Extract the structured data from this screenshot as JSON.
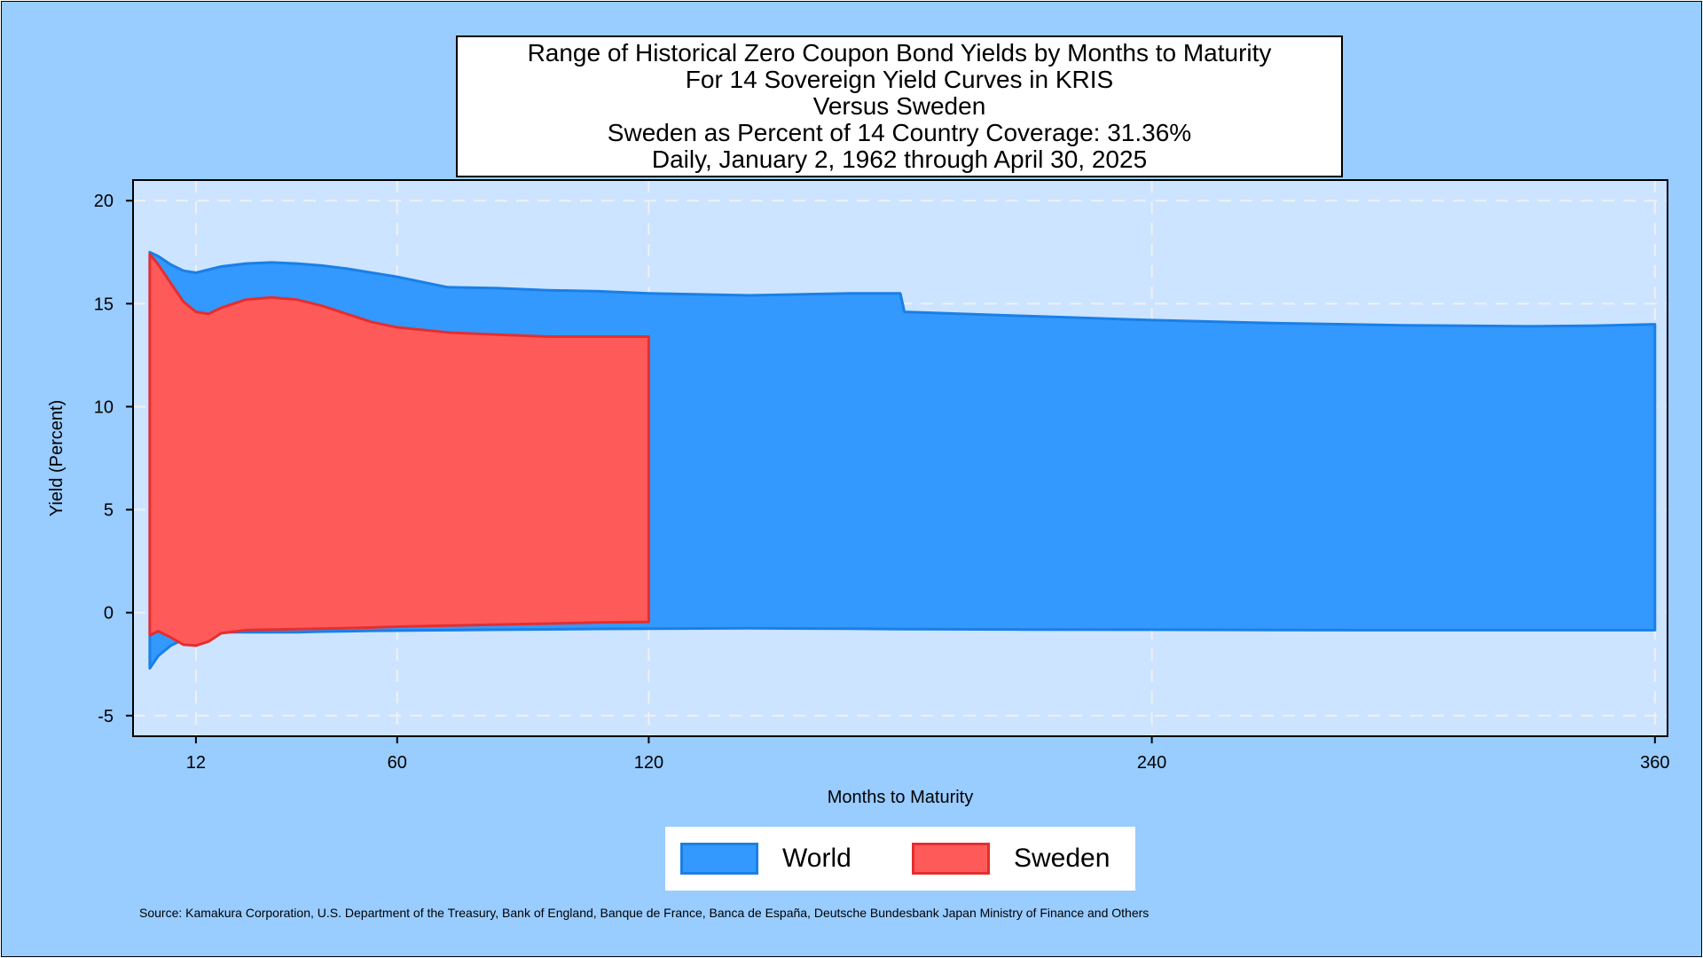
{
  "chart_data": {
    "type": "area",
    "title_lines": [
      "Range of Historical Zero Coupon Bond Yields by Months to Maturity",
      "For 14 Sovereign Yield Curves in KRIS",
      "Versus Sweden",
      "Sweden as Percent of 14 Country Coverage: 31.36%",
      "Daily, January 2, 1962 through April 30, 2025"
    ],
    "xlabel": "Months to Maturity",
    "ylabel": "Yield (Percent)",
    "xlim": [
      -3,
      363
    ],
    "ylim": [
      -6,
      21
    ],
    "x_ticks": [
      12,
      60,
      120,
      240,
      360
    ],
    "y_ticks": [
      -5,
      0,
      5,
      10,
      15,
      20
    ],
    "grid": true,
    "legend_position": "bottom",
    "series": [
      {
        "name": "World",
        "color": "#3399ff",
        "edge_color": "#1a7fe6",
        "x": [
          1,
          3,
          6,
          9,
          12,
          18,
          24,
          30,
          36,
          42,
          48,
          54,
          60,
          72,
          84,
          96,
          108,
          120,
          144,
          168,
          180,
          181,
          210,
          240,
          270,
          300,
          330,
          345,
          360
        ],
        "upper": [
          17.5,
          17.3,
          16.9,
          16.6,
          16.5,
          16.8,
          16.95,
          17.0,
          16.95,
          16.85,
          16.7,
          16.5,
          16.3,
          15.8,
          15.75,
          15.65,
          15.6,
          15.5,
          15.4,
          15.5,
          15.5,
          14.6,
          14.4,
          14.2,
          14.05,
          13.95,
          13.9,
          13.93,
          14.0
        ],
        "lower": [
          -2.7,
          -2.1,
          -1.6,
          -1.3,
          -1.1,
          -0.95,
          -0.95,
          -0.95,
          -0.95,
          -0.92,
          -0.9,
          -0.88,
          -0.87,
          -0.85,
          -0.83,
          -0.81,
          -0.79,
          -0.78,
          -0.76,
          -0.78,
          -0.8,
          -0.8,
          -0.82,
          -0.83,
          -0.84,
          -0.85,
          -0.85,
          -0.85,
          -0.85
        ]
      },
      {
        "name": "Sweden",
        "color": "#ff5a5a",
        "edge_color": "#e62e2e",
        "x": [
          1,
          3,
          6,
          9,
          12,
          15,
          18,
          24,
          30,
          36,
          42,
          48,
          54,
          60,
          72,
          84,
          96,
          108,
          120
        ],
        "upper": [
          17.4,
          16.9,
          16.0,
          15.1,
          14.6,
          14.5,
          14.8,
          15.2,
          15.3,
          15.2,
          14.9,
          14.5,
          14.1,
          13.85,
          13.6,
          13.5,
          13.4,
          13.4,
          13.4
        ],
        "lower": [
          -1.1,
          -0.9,
          -1.2,
          -1.55,
          -1.6,
          -1.4,
          -1.0,
          -0.85,
          -0.82,
          -0.8,
          -0.78,
          -0.75,
          -0.72,
          -0.68,
          -0.63,
          -0.58,
          -0.53,
          -0.48,
          -0.45
        ]
      }
    ]
  },
  "source_note": "Source: Kamakura Corporation, U.S. Department of the Treasury, Bank of England, Banque de France, Banca de España, Deutsche Bundesbank Japan Ministry of Finance and Others",
  "colors": {
    "outer_background": "#99ccff",
    "plot_background": "#cce4ff",
    "grid": "#f0f0f0"
  }
}
